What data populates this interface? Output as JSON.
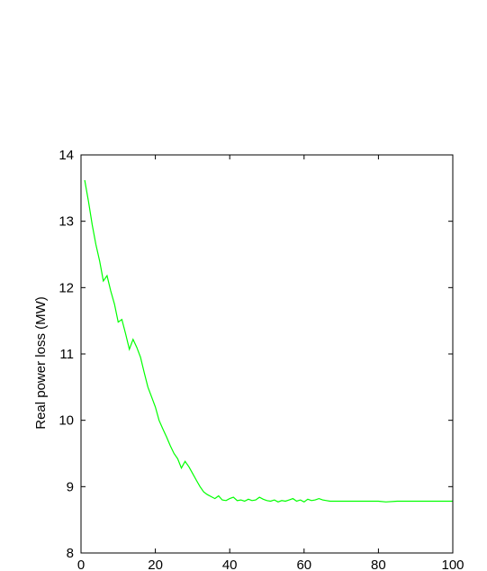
{
  "chart_data": {
    "type": "line",
    "title": "",
    "xlabel": "",
    "ylabel": "Real power loss (MW)",
    "xlim": [
      0,
      100
    ],
    "ylim": [
      8,
      14
    ],
    "grid": false,
    "legend": "none",
    "x_ticks": [
      "0",
      "20",
      "40",
      "60",
      "80",
      "100"
    ],
    "y_ticks": [
      "8",
      "9",
      "10",
      "11",
      "12",
      "13",
      "14"
    ],
    "series": [
      {
        "color": "#00ff00",
        "x": [
          1,
          2,
          3,
          4,
          5,
          6,
          7,
          8,
          9,
          10,
          11,
          12,
          13,
          14,
          15,
          16,
          17,
          18,
          19,
          20,
          21,
          22,
          23,
          24,
          25,
          26,
          27,
          28,
          29,
          30,
          31,
          32,
          33,
          34,
          35,
          36,
          37,
          38,
          39,
          40,
          41,
          42,
          43,
          44,
          45,
          46,
          47,
          48,
          49,
          50,
          51,
          52,
          53,
          54,
          55,
          56,
          57,
          58,
          59,
          60,
          61,
          62,
          63,
          64,
          65,
          66,
          67,
          68,
          70,
          75,
          80,
          82,
          85,
          90,
          95,
          100
        ],
        "y": [
          13.62,
          13.3,
          12.95,
          12.65,
          12.4,
          12.1,
          12.18,
          11.95,
          11.75,
          11.48,
          11.52,
          11.3,
          11.07,
          11.22,
          11.1,
          10.95,
          10.72,
          10.5,
          10.35,
          10.2,
          10.0,
          9.87,
          9.75,
          9.62,
          9.5,
          9.42,
          9.28,
          9.38,
          9.3,
          9.2,
          9.1,
          9.0,
          8.92,
          8.88,
          8.85,
          8.82,
          8.86,
          8.8,
          8.79,
          8.82,
          8.84,
          8.79,
          8.8,
          8.78,
          8.81,
          8.79,
          8.8,
          8.84,
          8.81,
          8.79,
          8.78,
          8.8,
          8.77,
          8.79,
          8.78,
          8.8,
          8.82,
          8.78,
          8.8,
          8.77,
          8.81,
          8.79,
          8.8,
          8.82,
          8.8,
          8.79,
          8.78,
          8.78,
          8.78,
          8.78,
          8.78,
          8.77,
          8.78,
          8.78,
          8.78,
          8.78
        ]
      }
    ]
  }
}
